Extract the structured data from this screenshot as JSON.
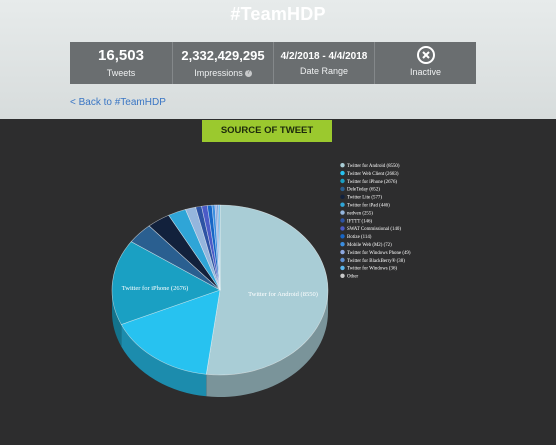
{
  "header": {
    "title": "#TeamHDP"
  },
  "stats": [
    {
      "value": "16,503",
      "label": "Tweets"
    },
    {
      "value": "2,332,429,295",
      "label": "Impressions",
      "info": "?"
    },
    {
      "value": "4/2/2018 - 4/4/2018",
      "label": "Date Range"
    },
    {
      "icon": "close-circle-icon",
      "label": "Inactive"
    }
  ],
  "back_link": "< Back to #TeamHDP",
  "section_title": "SOURCE OF TWEET",
  "chart_data": {
    "type": "pie",
    "style": "3d",
    "series": [
      {
        "name": "Twitter for Android (8550)",
        "value": 8550,
        "color": "#a9cdd6"
      },
      {
        "name": "Twitter Web Client (2683)",
        "value": 2683,
        "color": "#27c2f0"
      },
      {
        "name": "Twitter for iPhone (2676)",
        "value": 2676,
        "color": "#1aa0c3"
      },
      {
        "name": "DeleTeday (652)",
        "value": 652,
        "color": "#2a5f90"
      },
      {
        "name": "Twitter Lite (577)",
        "value": 577,
        "color": "#12213c"
      },
      {
        "name": "Twitter for iPad (446)",
        "value": 446,
        "color": "#2fa5d7"
      },
      {
        "name": "nedven (255)",
        "value": 255,
        "color": "#95b6dd"
      },
      {
        "name": "IFTTT (146)",
        "value": 146,
        "color": "#2d53a4"
      },
      {
        "name": "SWAT Commissional (140)",
        "value": 140,
        "color": "#4b5bc7"
      },
      {
        "name": "Botize (114)",
        "value": 114,
        "color": "#1766c6"
      },
      {
        "name": "Mobile Web (M2) (72)",
        "value": 72,
        "color": "#3b8ee0"
      },
      {
        "name": "Twitter for Windows Phone (49)",
        "value": 49,
        "color": "#8fa9e0"
      },
      {
        "name": "Twitter for BlackBerry® (38)",
        "value": 38,
        "color": "#5e8fd1"
      },
      {
        "name": "Twitter for Windows (36)",
        "value": 36,
        "color": "#5bb6ed"
      },
      {
        "name": "Other",
        "value": 0,
        "color": "#c9c9c9"
      }
    ],
    "slice_labels": [
      "Twitter for Android (8550)",
      "Twitter for iPhone (2676)"
    ]
  }
}
